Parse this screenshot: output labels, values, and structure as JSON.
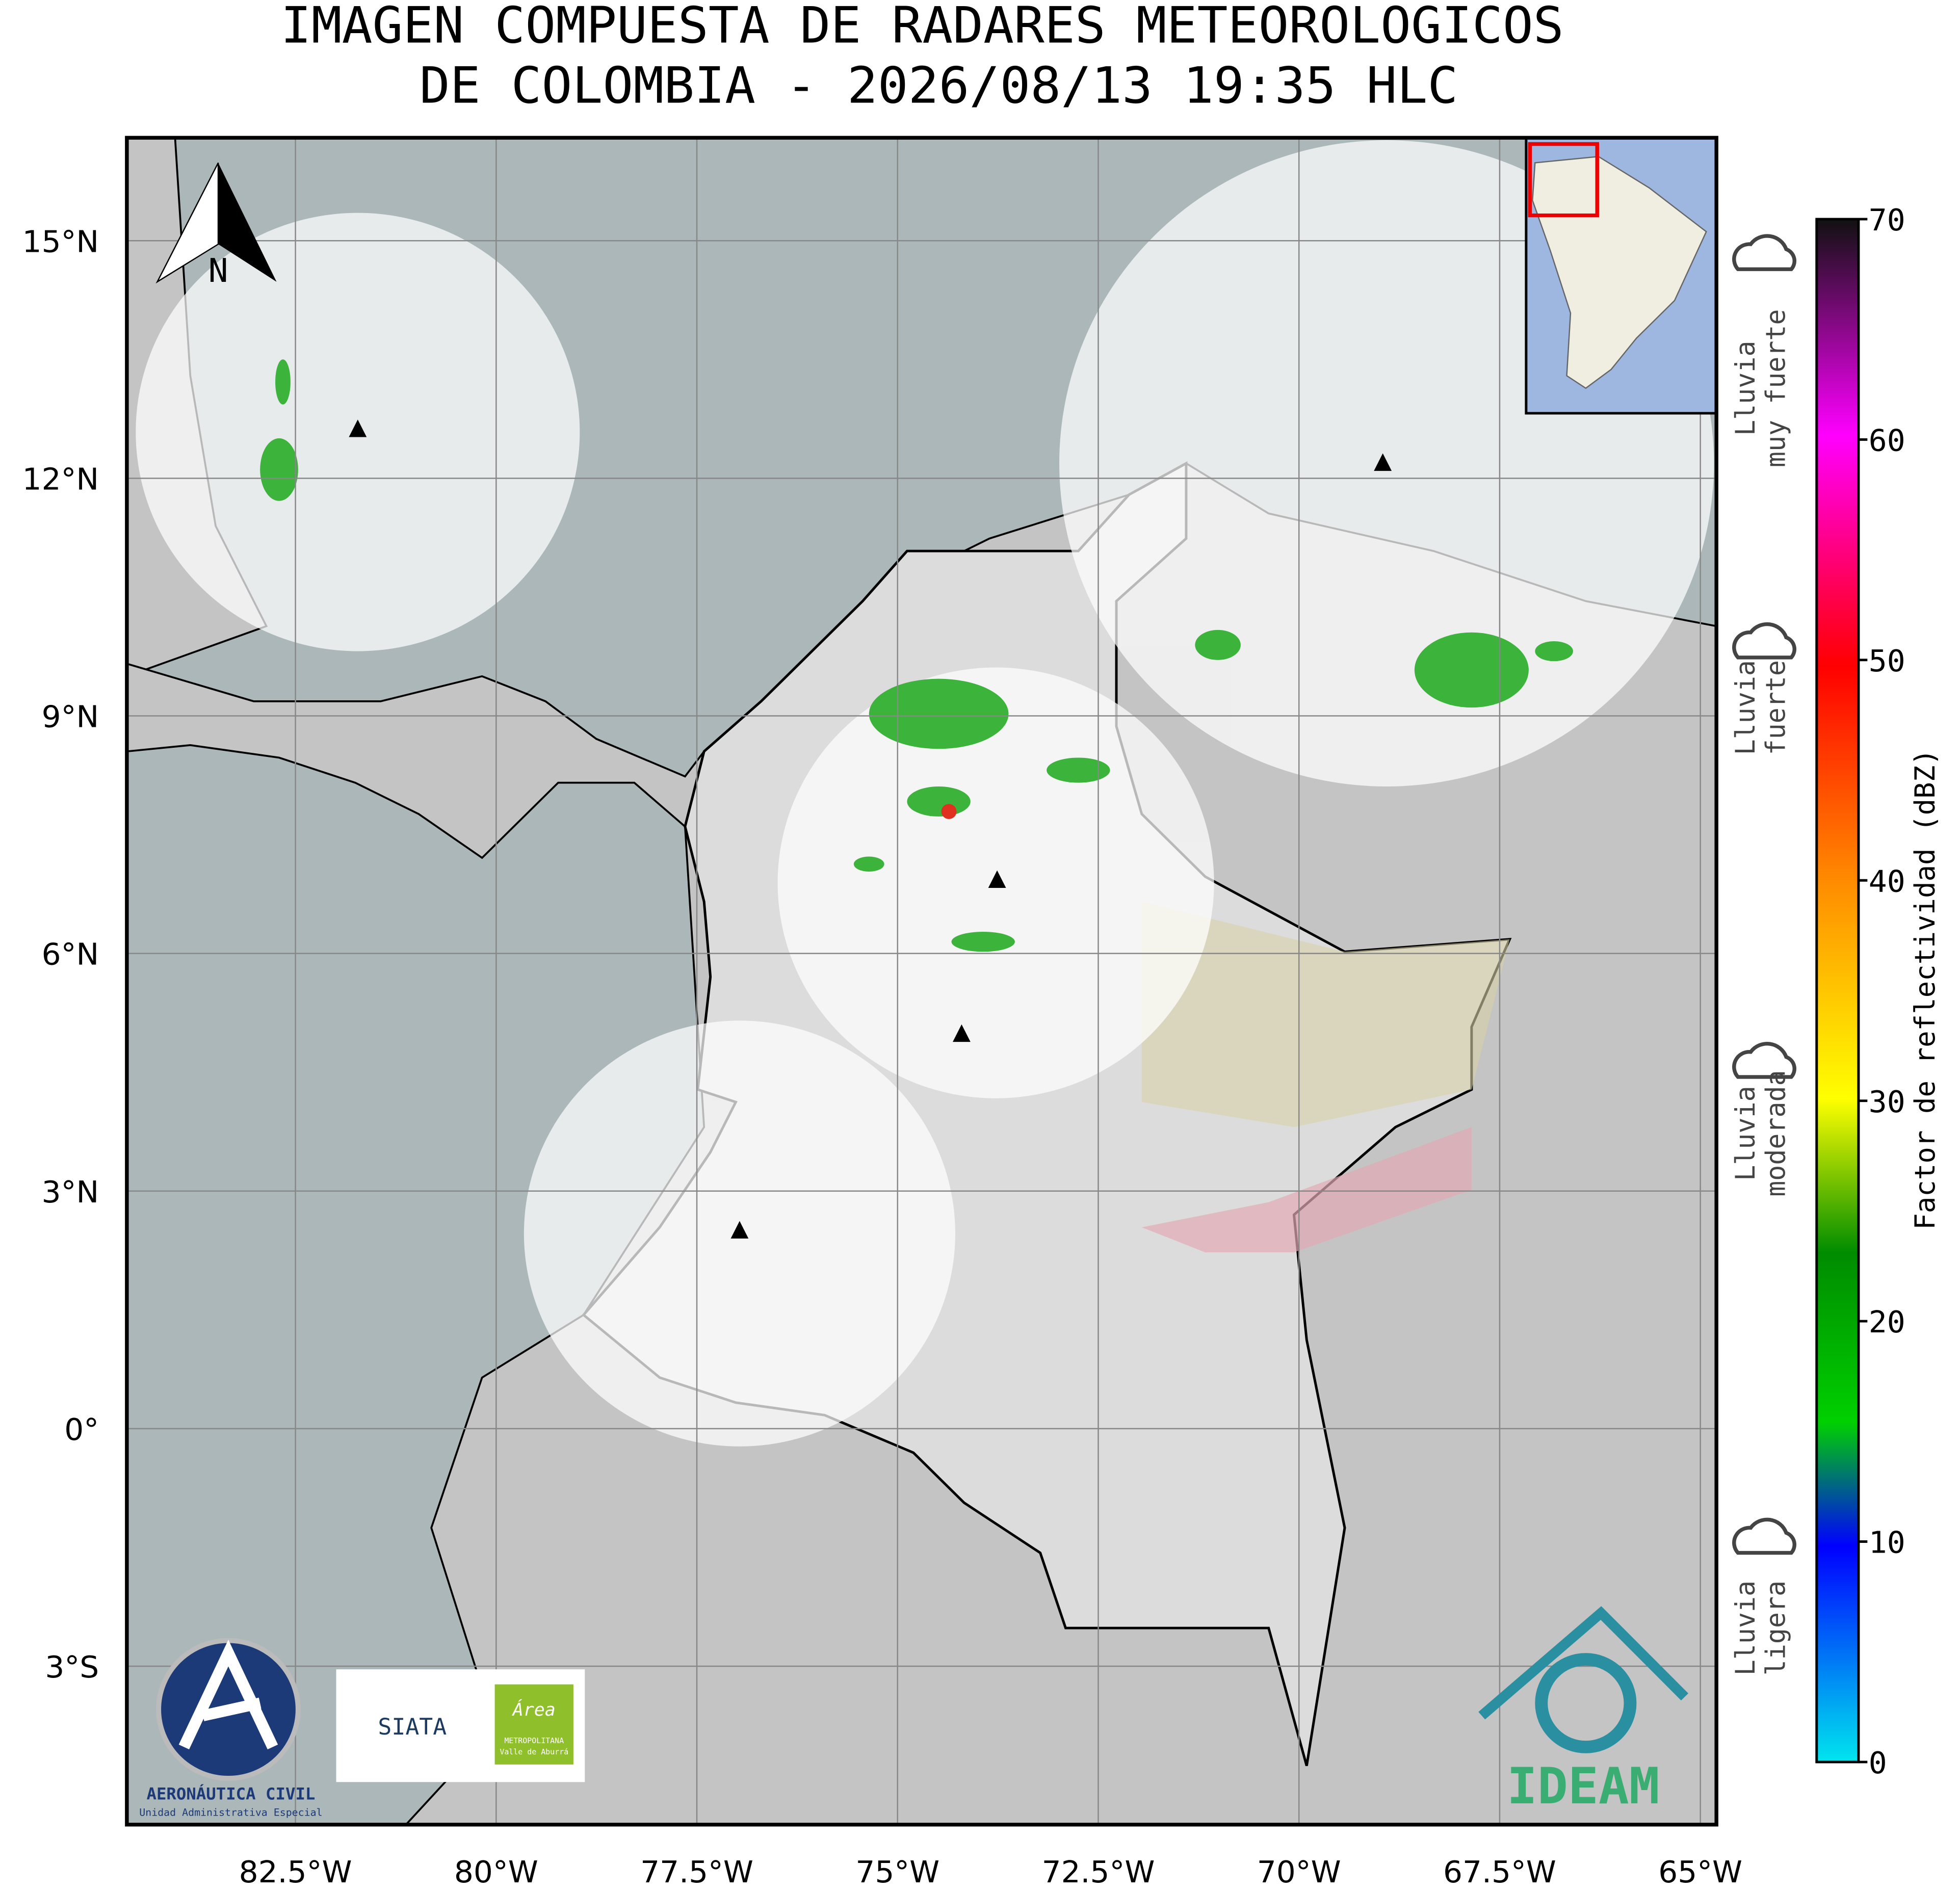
{
  "title": [
    "IMAGEN COMPUESTA DE RADARES METEOROLOGICOS",
    "DE COLOMBIA - 2026/08/13 19:35 HLC"
  ],
  "map": {
    "xlim": [
      -84.6,
      -64.8
    ],
    "ylim": [
      -5.0,
      16.3
    ],
    "grid": true,
    "xticks": [
      {
        "value": -82.5,
        "label": "82.5°W"
      },
      {
        "value": -80,
        "label": "80°W"
      },
      {
        "value": -77.5,
        "label": "77.5°W"
      },
      {
        "value": -75,
        "label": "75°W"
      },
      {
        "value": -72.5,
        "label": "72.5°W"
      },
      {
        "value": -70,
        "label": "70°W"
      },
      {
        "value": -67.5,
        "label": "67.5°W"
      },
      {
        "value": -65,
        "label": "65°W"
      }
    ],
    "yticks": [
      {
        "value": 15,
        "label": "15°N"
      },
      {
        "value": 12,
        "label": "12°N"
      },
      {
        "value": 9,
        "label": "9°N"
      },
      {
        "value": 6,
        "label": "6°N"
      },
      {
        "value": 3,
        "label": "3°N"
      },
      {
        "value": 0,
        "label": "0°"
      },
      {
        "value": -3,
        "label": "3°S"
      }
    ]
  },
  "north_arrow": "N",
  "colorbar": {
    "label": "Factor de reflectividad (dBZ)",
    "lim": [
      0,
      70
    ],
    "ticks": [
      0,
      10,
      20,
      30,
      40,
      50,
      60,
      70
    ]
  },
  "rain_labels": [
    [
      "Lluvia",
      "muy fuerte"
    ],
    [
      "Lluvia",
      "fuerte"
    ],
    [
      "Lluvia",
      "moderada"
    ],
    [
      "Lluvia",
      "ligera"
    ]
  ],
  "logos": {
    "aerocivil": [
      "AERONÁUTICA CIVIL",
      "Unidad Administrativa Especial"
    ],
    "siata": "SIATA",
    "area": [
      "Área",
      "METROPOLITANA",
      "Valle de Aburrá"
    ],
    "ideam": "IDEAM"
  }
}
